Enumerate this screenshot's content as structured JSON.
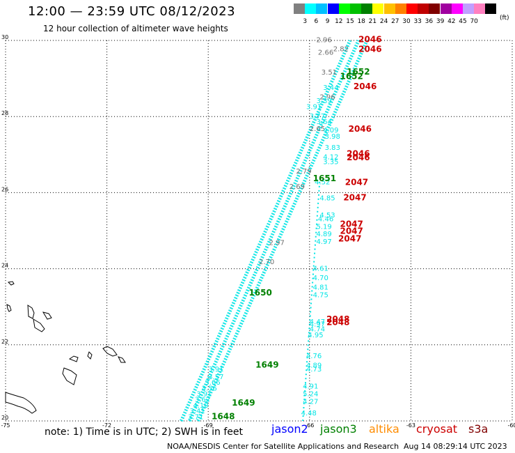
{
  "header": {
    "title": "12:00 — 23:59 UTC 08/12/2023",
    "subtitle": "12 hour collection of altimeter wave heights"
  },
  "colorbar": {
    "colors": [
      "#808080",
      "#00ffff",
      "#00c0ff",
      "#0000ff",
      "#00ff00",
      "#00c000",
      "#008000",
      "#ffff00",
      "#ffc000",
      "#ff8000",
      "#ff0000",
      "#c00000",
      "#800000",
      "#a000a0",
      "#ff00ff",
      "#c0a0ff",
      "#ff80c0",
      "#000000"
    ],
    "ticks": [
      "3",
      "6",
      "9",
      "12",
      "15",
      "18",
      "21",
      "24",
      "27",
      "30",
      "33",
      "36",
      "39",
      "42",
      "45",
      "70"
    ],
    "unit": "(ft)"
  },
  "axes": {
    "lat_labels": [
      "30",
      "28",
      "26",
      "24",
      "22",
      "20"
    ],
    "lon_labels": [
      "-75",
      "-72",
      "-69",
      "-66",
      "-63",
      "-60"
    ],
    "lat_values": [
      30,
      28,
      26,
      24,
      22,
      20
    ],
    "lon_values": [
      -75,
      -72,
      -69,
      -66,
      -63,
      -60
    ]
  },
  "track_colors": {
    "jason2": "#0000ff",
    "jason3": "#008000",
    "altika": "#ff8c00",
    "cryosat": "#cc0000",
    "s3a": "#800000",
    "cyan": "#00e5e5",
    "gray": "#707070"
  },
  "passes": [
    {
      "sat": "jason3",
      "time": "1652",
      "lon": -64.9,
      "lat": 29.1
    },
    {
      "sat": "jason3",
      "time": "1652",
      "lon": -65.1,
      "lat": 28.98
    },
    {
      "sat": "jason3",
      "time": "1651",
      "lon": -65.9,
      "lat": 26.3
    },
    {
      "sat": "jason3",
      "time": "1650",
      "lon": -67.8,
      "lat": 23.3
    },
    {
      "sat": "jason3",
      "time": "1649",
      "lon": -67.6,
      "lat": 21.4
    },
    {
      "sat": "jason3",
      "time": "1649",
      "lon": -68.3,
      "lat": 20.4
    },
    {
      "sat": "jason3",
      "time": "1648",
      "lon": -68.9,
      "lat": 20.05
    },
    {
      "sat": "cryosat",
      "time": "2046",
      "lon": -64.55,
      "lat": 29.95
    },
    {
      "sat": "cryosat",
      "time": "2046",
      "lon": -64.55,
      "lat": 29.7
    },
    {
      "sat": "cryosat",
      "time": "2046",
      "lon": -64.7,
      "lat": 28.72
    },
    {
      "sat": "cryosat",
      "time": "2046",
      "lon": -64.85,
      "lat": 27.6
    },
    {
      "sat": "cryosat",
      "time": "2046",
      "lon": -64.9,
      "lat": 26.95
    },
    {
      "sat": "cryosat",
      "time": "2046",
      "lon": -64.9,
      "lat": 26.85
    },
    {
      "sat": "cryosat",
      "time": "2047",
      "lon": -64.95,
      "lat": 26.2
    },
    {
      "sat": "cryosat",
      "time": "2047",
      "lon": -65.0,
      "lat": 25.8
    },
    {
      "sat": "cryosat",
      "time": "2047",
      "lon": -65.1,
      "lat": 25.1
    },
    {
      "sat": "cryosat",
      "time": "2047",
      "lon": -65.1,
      "lat": 24.92
    },
    {
      "sat": "cryosat",
      "time": "2047",
      "lon": -65.15,
      "lat": 24.72
    },
    {
      "sat": "cryosat",
      "time": "2048",
      "lon": -65.5,
      "lat": 22.6
    },
    {
      "sat": "cryosat",
      "time": "2048",
      "lon": -65.5,
      "lat": 22.52
    }
  ],
  "wave_heights": [
    {
      "v": "2.96",
      "lon": -65.8,
      "lat": 29.95,
      "c": "gray"
    },
    {
      "v": "2.82",
      "lon": -65.3,
      "lat": 29.72,
      "c": "gray"
    },
    {
      "v": "2.66",
      "lon": -65.75,
      "lat": 29.62,
      "c": "gray"
    },
    {
      "v": "3.51",
      "lon": -65.65,
      "lat": 29.1,
      "c": "gray"
    },
    {
      "v": "3.44",
      "lon": -65.6,
      "lat": 28.7,
      "c": "cyan"
    },
    {
      "v": "2.96",
      "lon": -65.7,
      "lat": 28.45,
      "c": "gray"
    },
    {
      "v": "3.39",
      "lon": -65.8,
      "lat": 28.35,
      "c": "cyan"
    },
    {
      "v": "3.91",
      "lon": -66.1,
      "lat": 28.2,
      "c": "cyan"
    },
    {
      "v": "3.77",
      "lon": -66.0,
      "lat": 27.95,
      "c": "cyan"
    },
    {
      "v": "3.64",
      "lon": -65.8,
      "lat": 27.8,
      "c": "cyan"
    },
    {
      "v": "2.65",
      "lon": -66.0,
      "lat": 27.62,
      "c": "gray"
    },
    {
      "v": "4.09",
      "lon": -65.6,
      "lat": 27.58,
      "c": "cyan"
    },
    {
      "v": "3.98",
      "lon": -65.55,
      "lat": 27.42,
      "c": "cyan"
    },
    {
      "v": "3.83",
      "lon": -65.55,
      "lat": 27.12,
      "c": "cyan"
    },
    {
      "v": "4.12",
      "lon": -65.6,
      "lat": 26.88,
      "c": "cyan"
    },
    {
      "v": "3.35",
      "lon": -65.6,
      "lat": 26.75,
      "c": "cyan"
    },
    {
      "v": "2.79",
      "lon": -66.4,
      "lat": 26.5,
      "c": "gray"
    },
    {
      "v": "4.52",
      "lon": -65.85,
      "lat": 26.22,
      "c": "cyan"
    },
    {
      "v": "2.69",
      "lon": -66.6,
      "lat": 26.1,
      "c": "gray"
    },
    {
      "v": "4.85",
      "lon": -65.7,
      "lat": 25.8,
      "c": "cyan"
    },
    {
      "v": "4.53",
      "lon": -65.7,
      "lat": 25.35,
      "c": "cyan"
    },
    {
      "v": "4.46",
      "lon": -65.75,
      "lat": 25.25,
      "c": "cyan"
    },
    {
      "v": "5.19",
      "lon": -65.8,
      "lat": 25.05,
      "c": "cyan"
    },
    {
      "v": "4.89",
      "lon": -65.8,
      "lat": 24.85,
      "c": "cyan"
    },
    {
      "v": "4.97",
      "lon": -65.8,
      "lat": 24.65,
      "c": "cyan"
    },
    {
      "v": "2.97",
      "lon": -67.2,
      "lat": 24.62,
      "c": "gray"
    },
    {
      "v": "2.70",
      "lon": -67.5,
      "lat": 24.12,
      "c": "gray"
    },
    {
      "v": "4.61",
      "lon": -65.9,
      "lat": 23.95,
      "c": "cyan"
    },
    {
      "v": "4.70",
      "lon": -65.9,
      "lat": 23.7,
      "c": "cyan"
    },
    {
      "v": "4.81",
      "lon": -65.9,
      "lat": 23.45,
      "c": "cyan"
    },
    {
      "v": "4.75",
      "lon": -65.9,
      "lat": 23.25,
      "c": "cyan"
    },
    {
      "v": "4.47",
      "lon": -66.0,
      "lat": 22.55,
      "c": "cyan"
    },
    {
      "v": "4.97",
      "lon": -66.0,
      "lat": 22.48,
      "c": "cyan"
    },
    {
      "v": "4.74",
      "lon": -66.0,
      "lat": 22.35,
      "c": "cyan"
    },
    {
      "v": "4.95",
      "lon": -66.05,
      "lat": 22.2,
      "c": "cyan"
    },
    {
      "v": "4.76",
      "lon": -66.1,
      "lat": 21.65,
      "c": "cyan"
    },
    {
      "v": "4.89",
      "lon": -66.1,
      "lat": 21.4,
      "c": "cyan"
    },
    {
      "v": "4.73",
      "lon": -66.1,
      "lat": 21.3,
      "c": "cyan"
    },
    {
      "v": "4.91",
      "lon": -66.2,
      "lat": 20.85,
      "c": "cyan"
    },
    {
      "v": "5.24",
      "lon": -66.2,
      "lat": 20.65,
      "c": "cyan"
    },
    {
      "v": "4.27",
      "lon": -66.2,
      "lat": 20.45,
      "c": "cyan"
    },
    {
      "v": "4.48",
      "lon": -66.25,
      "lat": 20.15,
      "c": "cyan"
    },
    {
      "v": "3.91",
      "lon": -69.0,
      "lat": 21.3,
      "c": "cyan"
    },
    {
      "v": "3.57",
      "lon": -69.0,
      "lat": 21.1,
      "c": "cyan"
    },
    {
      "v": "3.66",
      "lon": -69.1,
      "lat": 20.95,
      "c": "cyan"
    },
    {
      "v": "3.56",
      "lon": -69.2,
      "lat": 20.8,
      "c": "cyan"
    },
    {
      "v": "3.91",
      "lon": -69.35,
      "lat": 20.65,
      "c": "cyan"
    },
    {
      "v": "3.62",
      "lon": -69.4,
      "lat": 20.5,
      "c": "cyan"
    },
    {
      "v": "4.10",
      "lon": -69.45,
      "lat": 20.35,
      "c": "cyan"
    },
    {
      "v": "3.41",
      "lon": -69.55,
      "lat": 20.2,
      "c": "cyan"
    },
    {
      "v": "3.71",
      "lon": -69.6,
      "lat": 20.05,
      "c": "cyan"
    }
  ],
  "legend": {
    "note": "note: 1) Time is in UTC; 2) SWH is in feet",
    "items": [
      {
        "label": "jason2",
        "color": "#0000ff",
        "x": 390
      },
      {
        "label": "jason3",
        "color": "#008000",
        "x": 460
      },
      {
        "label": "altika",
        "color": "#ff8c00",
        "x": 530
      },
      {
        "label": "cryosat",
        "color": "#cc0000",
        "x": 598
      },
      {
        "label": "s3a",
        "color": "#800000",
        "x": 673
      }
    ]
  },
  "footer": {
    "credit": "NOAA/NESDIS Center for Satellite Applications and Research",
    "timestamp": "Aug 14 08:29:14 UTC 2023"
  }
}
